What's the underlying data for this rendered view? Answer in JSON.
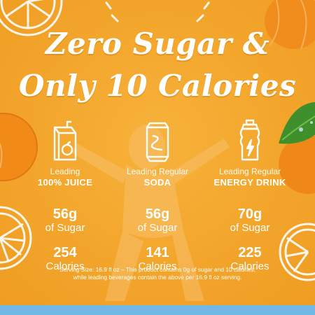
{
  "headline": {
    "line1": "Zero Sugar &",
    "line2": "Only 10 Calories"
  },
  "columns": [
    {
      "icon": "juice-box-icon",
      "lead": "Leading",
      "product": "100% JUICE",
      "sugar_value": "56g",
      "sugar_unit": "of Sugar",
      "cal_value": "254",
      "cal_unit": "Calories"
    },
    {
      "icon": "soda-can-icon",
      "lead": "Leading Regular",
      "product": "SODA",
      "sugar_value": "56g",
      "sugar_unit": "of Sugar",
      "cal_value": "141",
      "cal_unit": "Calories"
    },
    {
      "icon": "sports-bottle-icon",
      "lead": "Leading Regular",
      "product": "ENERGY DRINK",
      "sugar_value": "70g",
      "sugar_unit": "of Sugar",
      "cal_value": "225",
      "cal_unit": "Calories"
    }
  ],
  "footnote": {
    "line1": "Serving Size: 16.9 fl oz – This product contains 0g of sugar and 10 calories;",
    "line2": "while leading beverages contain the above per 16.9 fl oz serving."
  },
  "colors": {
    "background": "#f3a52b",
    "text": "#ffffff",
    "bottom_bar": "#72b8e6",
    "leaf": "#3f8f2d"
  }
}
